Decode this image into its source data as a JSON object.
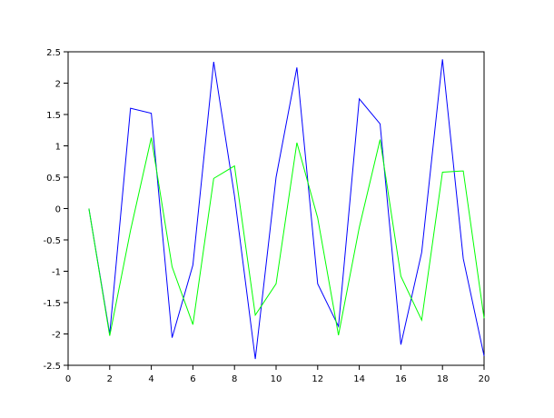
{
  "chart_data": {
    "type": "line",
    "x": [
      1,
      2,
      3,
      4,
      5,
      6,
      7,
      8,
      9,
      10,
      11,
      12,
      13,
      14,
      15,
      16,
      17,
      18,
      19,
      20
    ],
    "series": [
      {
        "color": "#0000ff",
        "values": [
          0,
          -2.0,
          1.6,
          1.52,
          -2.06,
          -0.9,
          2.34,
          0.2,
          -2.4,
          0.5,
          2.25,
          -1.2,
          -1.88,
          1.75,
          1.35,
          -2.17,
          -0.7,
          2.38,
          -0.8,
          -2.35
        ]
      },
      {
        "color": "#00ff00",
        "values": [
          0,
          -2.03,
          -0.35,
          1.13,
          -0.93,
          -1.85,
          0.48,
          0.68,
          -1.7,
          -1.2,
          1.05,
          -0.15,
          -2.02,
          -0.3,
          1.1,
          -1.08,
          -1.78,
          0.58,
          0.6,
          -1.75
        ]
      }
    ],
    "xlim": [
      0,
      20
    ],
    "xticks": [
      0,
      2,
      4,
      6,
      8,
      10,
      12,
      14,
      16,
      18,
      20
    ],
    "ylim": [
      -2.5,
      2.5
    ],
    "yticks": [
      -2.5,
      -2,
      -1.5,
      -1,
      -0.5,
      0,
      0.5,
      1,
      1.5,
      2,
      2.5
    ]
  }
}
